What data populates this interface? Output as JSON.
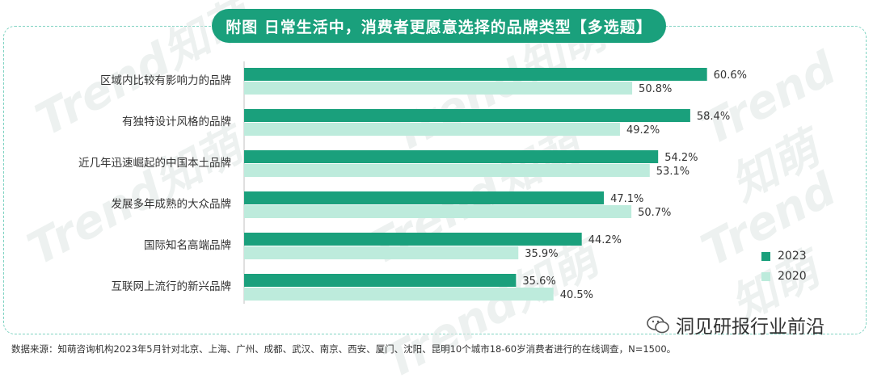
{
  "header": {
    "title": "附图 日常生活中，消费者更愿意选择的品牌类型【多选题】"
  },
  "watermark": {
    "text": "Trend知萌"
  },
  "chart_data": {
    "type": "bar",
    "orientation": "horizontal",
    "categories": [
      "区域内比较有影响力的品牌",
      "有独特设计风格的品牌",
      "近几年迅速崛起的中国本土品牌",
      "发展多年成熟的大众品牌",
      "国际知名高端品牌",
      "互联网上流行的新兴品牌"
    ],
    "series": [
      {
        "name": "2023",
        "values": [
          60.6,
          58.4,
          54.2,
          47.1,
          44.2,
          35.6
        ],
        "labels": [
          "60.6%",
          "58.4%",
          "54.2%",
          "47.1%",
          "44.2%",
          "35.6%"
        ],
        "color": "#1aa07c"
      },
      {
        "name": "2020",
        "values": [
          50.8,
          49.2,
          53.1,
          50.7,
          35.9,
          40.5
        ],
        "labels": [
          "50.8%",
          "49.2%",
          "53.1%",
          "50.7%",
          "35.9%",
          "40.5%"
        ],
        "color": "#bdebdc"
      }
    ],
    "xlim": [
      0,
      70
    ],
    "legend_position": "bottom-right",
    "grid": false
  },
  "footer": {
    "source": "数据来源：知萌咨询机构2023年5月针对北京、上海、广州、成都、武汉、南京、西安、厦门、沈阳、昆明10个城市18-60岁消费者进行的在线调查，N=1500。",
    "brand": "洞见研报行业前沿"
  }
}
